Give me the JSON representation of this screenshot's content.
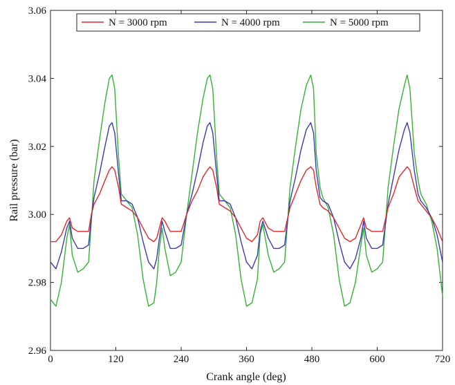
{
  "chart_data": {
    "type": "line",
    "title": "",
    "xlabel": "Crank angle (deg)",
    "ylabel": "Rail pressure (bar)",
    "xlim": [
      0,
      720
    ],
    "ylim": [
      2.96,
      3.06
    ],
    "x_ticks": [
      0,
      120,
      240,
      360,
      480,
      600,
      720
    ],
    "y_ticks": [
      2.96,
      2.98,
      3.0,
      3.02,
      3.04,
      3.06
    ],
    "x_tick_labels": [
      "0",
      "120",
      "240",
      "360",
      "480",
      "600",
      "720"
    ],
    "y_tick_labels": [
      "2.96",
      "2.98",
      "3.00",
      "3.02",
      "3.04",
      "3.06"
    ],
    "grid": false,
    "legend_position": "top",
    "series": [
      {
        "name": "N = 3000 rpm",
        "color": "#e0262b",
        "x": [
          0,
          10,
          20,
          30,
          35,
          40,
          50,
          60,
          70,
          75,
          80,
          90,
          100,
          108,
          113,
          118,
          125,
          130,
          140,
          150,
          160,
          170,
          180,
          190,
          195,
          200,
          205,
          210,
          220,
          230,
          240,
          250,
          260,
          270,
          280,
          288,
          293,
          298,
          305,
          310,
          320,
          330,
          340,
          350,
          360,
          370,
          380,
          385,
          390,
          400,
          410,
          420,
          430,
          440,
          450,
          460,
          470,
          478,
          483,
          488,
          495,
          500,
          510,
          520,
          530,
          540,
          550,
          560,
          570,
          575,
          580,
          590,
          600,
          610,
          620,
          630,
          640,
          650,
          655,
          660,
          668,
          675,
          680,
          690,
          700,
          710,
          720
        ],
        "y": [
          2.992,
          2.992,
          2.994,
          2.998,
          2.999,
          2.996,
          2.995,
          2.995,
          2.995,
          3.0,
          3.003,
          3.006,
          3.01,
          3.013,
          3.014,
          3.013,
          3.008,
          3.003,
          3.002,
          3.001,
          2.999,
          2.996,
          2.993,
          2.992,
          2.993,
          2.996,
          2.999,
          2.998,
          2.995,
          2.995,
          2.995,
          3.0,
          3.004,
          3.007,
          3.011,
          3.013,
          3.014,
          3.013,
          3.008,
          3.003,
          3.002,
          3.001,
          2.999,
          2.996,
          2.993,
          2.992,
          2.994,
          2.998,
          2.999,
          2.996,
          2.995,
          2.995,
          2.995,
          3.002,
          3.006,
          3.01,
          3.013,
          3.014,
          3.013,
          3.008,
          3.003,
          3.002,
          3.001,
          2.999,
          2.996,
          2.993,
          2.992,
          2.993,
          2.997,
          2.999,
          2.996,
          2.995,
          2.995,
          2.995,
          3.002,
          3.006,
          3.011,
          3.013,
          3.014,
          3.013,
          3.008,
          3.004,
          3.003,
          3.001,
          2.999,
          2.996,
          2.992
        ]
      },
      {
        "name": "N = 4000 rpm",
        "color": "#3a3ab0",
        "x": [
          0,
          10,
          20,
          30,
          35,
          40,
          50,
          60,
          70,
          75,
          80,
          90,
          100,
          108,
          113,
          118,
          125,
          130,
          140,
          150,
          160,
          170,
          180,
          190,
          195,
          200,
          205,
          210,
          220,
          230,
          240,
          250,
          260,
          270,
          280,
          288,
          293,
          298,
          305,
          310,
          320,
          330,
          340,
          350,
          360,
          370,
          380,
          385,
          390,
          400,
          410,
          420,
          430,
          440,
          450,
          460,
          470,
          478,
          483,
          488,
          495,
          500,
          510,
          520,
          530,
          540,
          550,
          560,
          570,
          575,
          580,
          590,
          600,
          610,
          620,
          630,
          640,
          650,
          655,
          660,
          668,
          675,
          680,
          690,
          700,
          710,
          720
        ],
        "y": [
          2.986,
          2.984,
          2.989,
          2.996,
          2.998,
          2.993,
          2.99,
          2.99,
          2.991,
          2.999,
          3.005,
          3.012,
          3.02,
          3.026,
          3.027,
          3.024,
          3.012,
          3.004,
          3.004,
          3.003,
          2.999,
          2.992,
          2.986,
          2.984,
          2.987,
          2.993,
          2.998,
          2.995,
          2.99,
          2.99,
          2.991,
          3.0,
          3.006,
          3.013,
          3.021,
          3.026,
          3.027,
          3.024,
          3.012,
          3.004,
          3.004,
          3.003,
          2.999,
          2.992,
          2.986,
          2.984,
          2.988,
          2.995,
          2.998,
          2.993,
          2.99,
          2.99,
          2.991,
          3.004,
          3.011,
          3.019,
          3.025,
          3.027,
          3.024,
          3.013,
          3.005,
          3.004,
          3.003,
          2.999,
          2.992,
          2.986,
          2.984,
          2.987,
          2.993,
          2.998,
          2.993,
          2.99,
          2.99,
          2.991,
          3.003,
          3.011,
          3.019,
          3.025,
          3.027,
          3.024,
          3.013,
          3.006,
          3.004,
          3.002,
          2.999,
          2.994,
          2.986
        ]
      },
      {
        "name": "N = 5000 rpm",
        "color": "#33b233",
        "x": [
          0,
          10,
          20,
          30,
          35,
          40,
          50,
          60,
          70,
          75,
          80,
          90,
          100,
          108,
          113,
          118,
          125,
          130,
          140,
          150,
          160,
          170,
          180,
          190,
          195,
          200,
          205,
          210,
          220,
          230,
          240,
          250,
          260,
          270,
          280,
          288,
          293,
          298,
          305,
          310,
          320,
          330,
          340,
          350,
          360,
          370,
          380,
          385,
          390,
          400,
          410,
          420,
          430,
          440,
          450,
          460,
          470,
          478,
          483,
          488,
          495,
          500,
          510,
          520,
          530,
          540,
          550,
          560,
          570,
          575,
          580,
          590,
          600,
          610,
          620,
          630,
          640,
          650,
          655,
          660,
          668,
          675,
          680,
          690,
          700,
          710,
          720
        ],
        "y": [
          2.975,
          2.973,
          2.98,
          2.993,
          2.997,
          2.988,
          2.983,
          2.984,
          2.986,
          2.998,
          3.01,
          3.022,
          3.033,
          3.04,
          3.041,
          3.037,
          3.017,
          3.006,
          3.004,
          3.002,
          2.994,
          2.981,
          2.973,
          2.974,
          2.98,
          2.99,
          2.996,
          2.99,
          2.982,
          2.983,
          2.986,
          3.0,
          3.012,
          3.024,
          3.034,
          3.04,
          3.041,
          3.037,
          3.017,
          3.006,
          3.004,
          3.002,
          2.994,
          2.981,
          2.973,
          2.974,
          2.981,
          2.994,
          2.997,
          2.988,
          2.983,
          2.984,
          2.986,
          3.008,
          3.02,
          3.031,
          3.038,
          3.041,
          3.037,
          3.018,
          3.008,
          3.005,
          3.002,
          2.994,
          2.981,
          2.973,
          2.974,
          2.98,
          2.991,
          2.996,
          2.988,
          2.983,
          2.984,
          2.986,
          3.008,
          3.02,
          3.031,
          3.038,
          3.041,
          3.037,
          3.018,
          3.01,
          3.006,
          3.003,
          2.998,
          2.99,
          2.976
        ]
      }
    ]
  }
}
